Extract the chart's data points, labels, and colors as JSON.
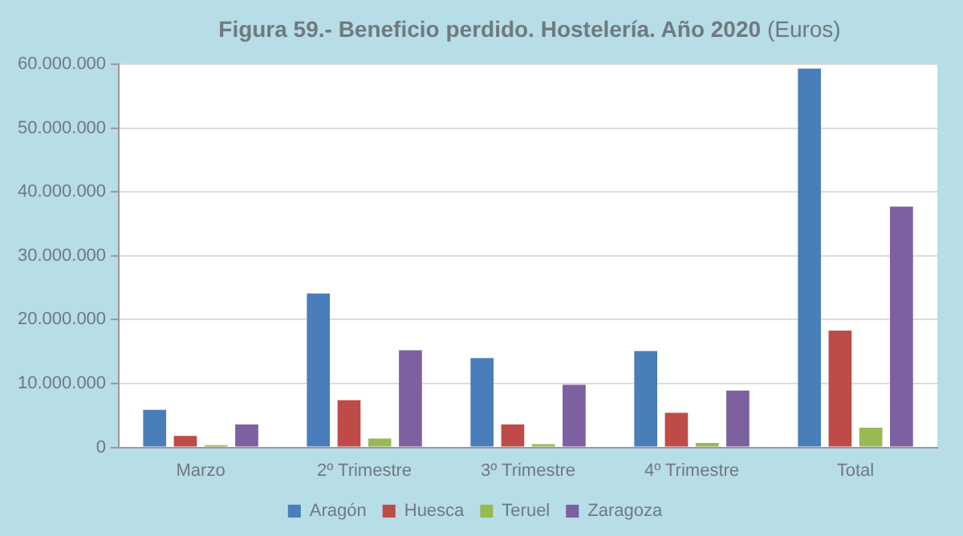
{
  "chart_data": {
    "type": "bar",
    "title": "Figura 59.- Beneficio perdido. Hostelería. Año 2020",
    "subtitle": "(Euros)",
    "categories": [
      "Marzo",
      "2º Trimestre",
      "3º Trimestre",
      "4º Trimestre",
      "Total"
    ],
    "series": [
      {
        "name": "Aragón",
        "color": "#4a7ebb",
        "values": [
          5900000,
          24100000,
          14000000,
          15100000,
          59300000
        ]
      },
      {
        "name": "Huesca",
        "color": "#be4b48",
        "values": [
          1800000,
          7400000,
          3600000,
          5400000,
          18300000
        ]
      },
      {
        "name": "Teruel",
        "color": "#98b954",
        "values": [
          350000,
          1400000,
          500000,
          700000,
          3100000
        ]
      },
      {
        "name": "Zaragoza",
        "color": "#7d60a0",
        "values": [
          3600000,
          15200000,
          9800000,
          8900000,
          37700000
        ]
      }
    ],
    "ylim": [
      0,
      60000000
    ],
    "yticks": [
      {
        "value": 0,
        "label": "0"
      },
      {
        "value": 10000000,
        "label": "10.000.000"
      },
      {
        "value": 20000000,
        "label": "20.000.000"
      },
      {
        "value": 30000000,
        "label": "30.000.000"
      },
      {
        "value": 40000000,
        "label": "40.000.000"
      },
      {
        "value": 50000000,
        "label": "50.000.000"
      },
      {
        "value": 60000000,
        "label": "60.000.000"
      }
    ],
    "grid": "y",
    "legend": "bottom"
  }
}
